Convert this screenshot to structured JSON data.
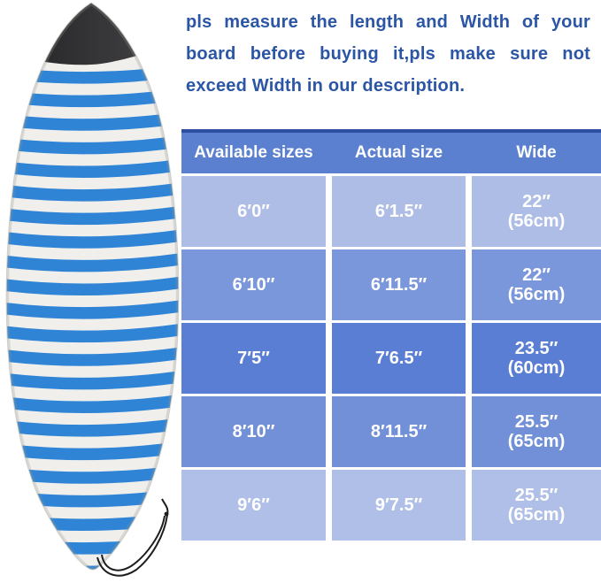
{
  "notice": {
    "text": "pls measure the length and Width of your board before buying it,pls make sure not exceed Width in our description.",
    "lines": [
      "pls measure the length and Width of your",
      "board before buying it,pls make sure not",
      "exceed Width in our description."
    ],
    "color": "#2b55a5"
  },
  "size_table": {
    "columns": [
      "Available sizes",
      "Actual size",
      "Wide"
    ],
    "rows": [
      {
        "available_size": "6′0′′",
        "actual_size": "6′1.5′′",
        "wide_inches": "22′′",
        "wide_cm": "(56cm)"
      },
      {
        "available_size": "6′10′′",
        "actual_size": "6′11.5′′",
        "wide_inches": "22′′",
        "wide_cm": "(56cm)"
      },
      {
        "available_size": "7′5′′",
        "actual_size": "7′6.5′′",
        "wide_inches": "23.5′′",
        "wide_cm": "(60cm)"
      },
      {
        "available_size": "8′10′′",
        "actual_size": "8′11.5′′",
        "wide_inches": "25.5′′",
        "wide_cm": "(65cm)"
      },
      {
        "available_size": "9′6′′",
        "actual_size": "9′7.5′′",
        "wide_inches": "25.5′′",
        "wide_cm": "(65cm)"
      }
    ],
    "row_colors": [
      "#aebde6",
      "#7b97dc",
      "#5a7ed4",
      "#7290d8",
      "#b0bfe7"
    ],
    "header_bg": "#5b80d0",
    "header_top_border": "#2d4fa0",
    "header_text_color": "#ffffff",
    "cell_text_color": "#ffffff"
  },
  "board": {
    "stripe_blue": "#2f84d6",
    "stripe_white": "#f0efec",
    "nose_color_dark": "#242426",
    "nose_color_light": "#454548",
    "cord_color": "#1d1d1d"
  }
}
